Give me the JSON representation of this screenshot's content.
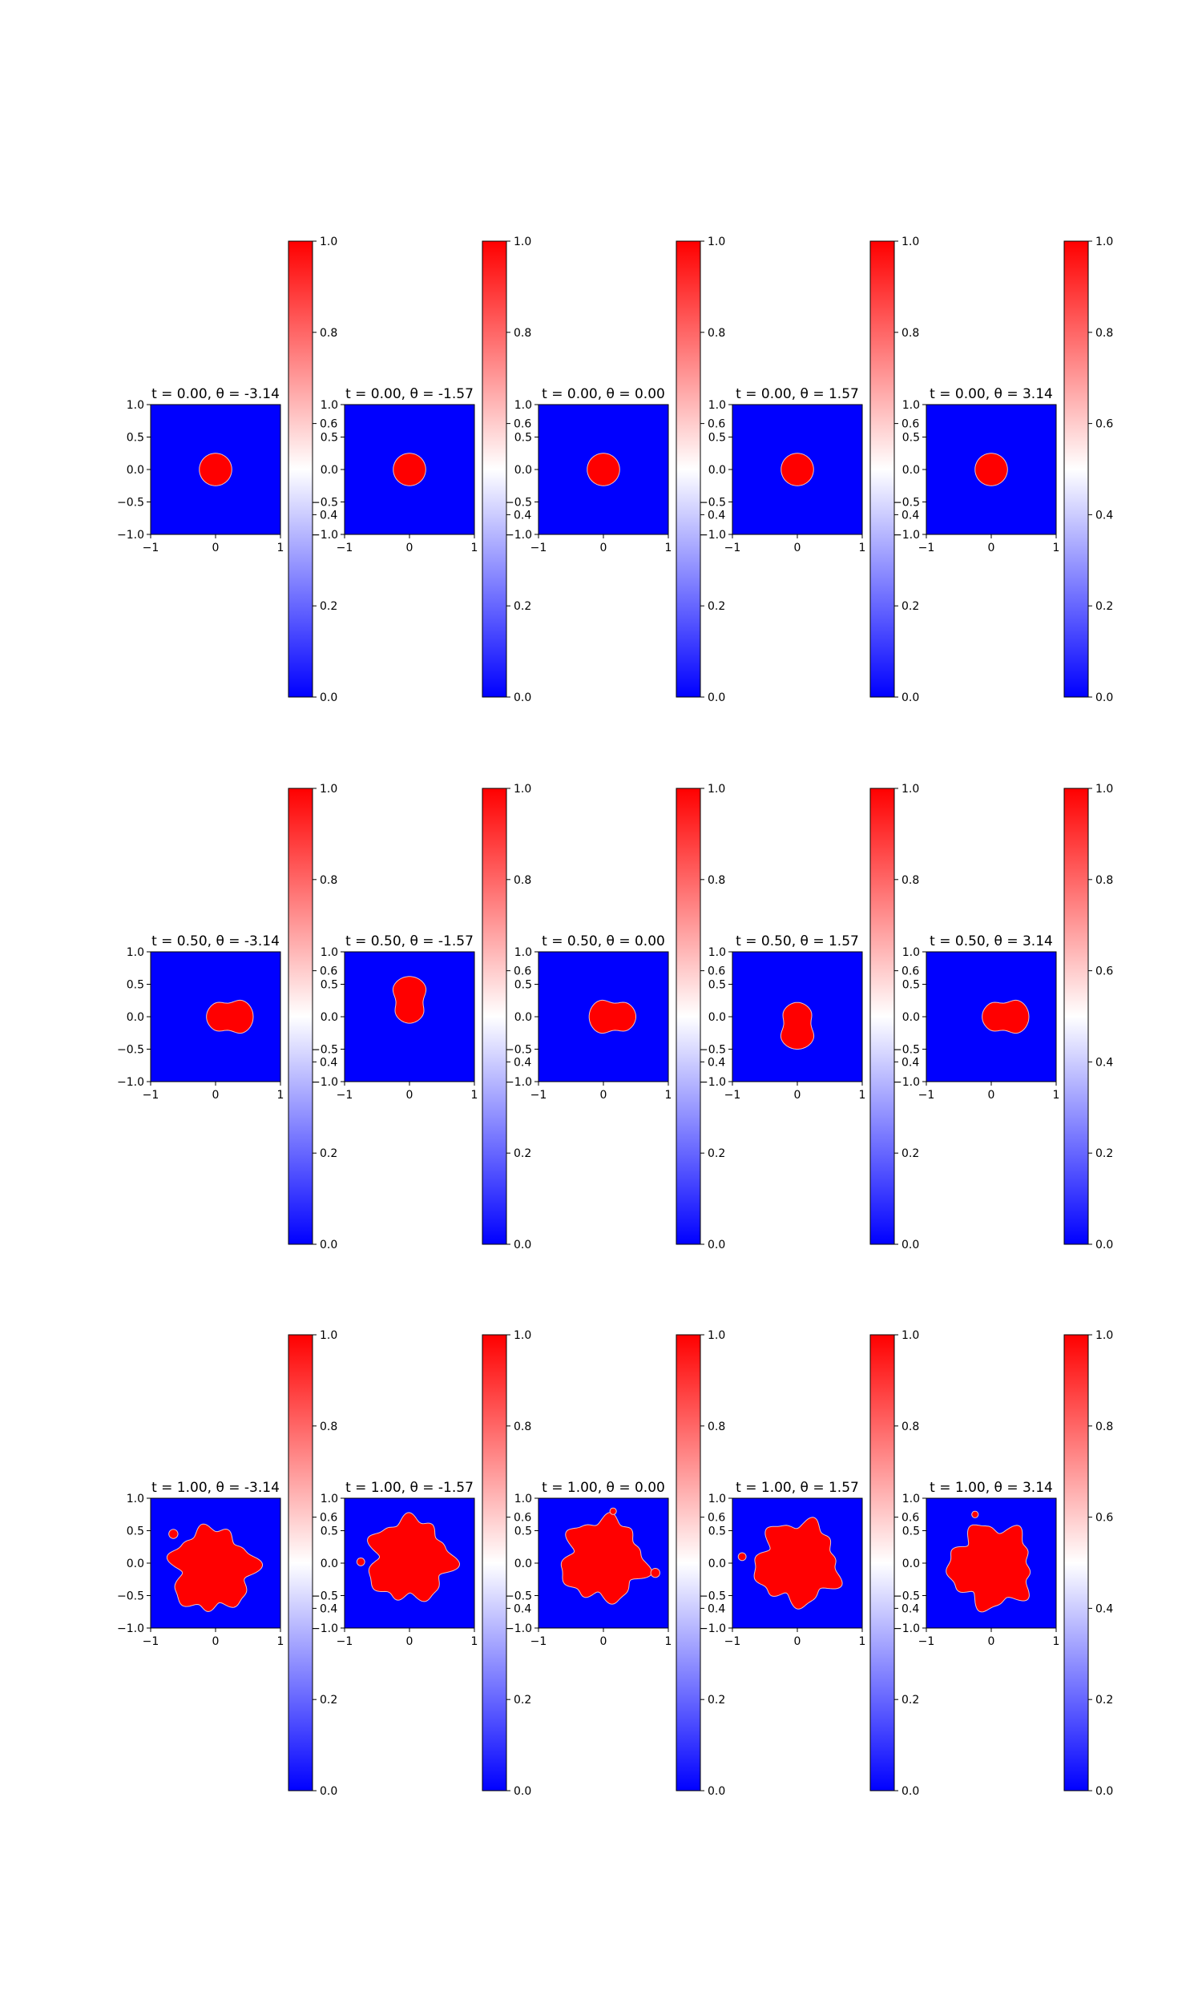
{
  "chart_data": {
    "type": "heatmap",
    "colormap": "bwr",
    "colors": {
      "low": "#0000ff",
      "mid": "#ffffff",
      "high": "#ff0000"
    },
    "xlim": [
      -1,
      1
    ],
    "ylim": [
      -1,
      1
    ],
    "x_ticks": [
      "−1",
      "0",
      "1"
    ],
    "y_ticks": [
      "−1.0",
      "−0.5",
      "0.0",
      "0.5",
      "1.0"
    ],
    "colorbar": {
      "range": [
        0.0,
        1.0
      ],
      "tick_values": [
        0.0,
        0.2,
        0.4,
        0.6,
        0.8,
        1.0
      ],
      "tick_labels": [
        "0.0",
        "0.2",
        "0.4",
        "0.6",
        "0.8",
        "1.0"
      ]
    },
    "rows": [
      {
        "t": 0.0,
        "panels": [
          {
            "theta": -3.14,
            "title": "t = 0.00, θ = -3.14",
            "shape": "disk"
          },
          {
            "theta": -1.57,
            "title": "t = 0.00, θ = -1.57",
            "shape": "disk"
          },
          {
            "theta": 0.0,
            "title": "t = 0.00, θ = 0.00",
            "shape": "disk"
          },
          {
            "theta": 1.57,
            "title": "t = 0.00, θ = 1.57",
            "shape": "disk"
          },
          {
            "theta": 3.14,
            "title": "t = 0.00, θ = 3.14",
            "shape": "disk"
          }
        ]
      },
      {
        "t": 0.5,
        "panels": [
          {
            "theta": -3.14,
            "title": "t = 0.50, θ = -3.14",
            "shape": "peanut-right"
          },
          {
            "theta": -1.57,
            "title": "t = 0.50, θ = -1.57",
            "shape": "peanut-up"
          },
          {
            "theta": 0.0,
            "title": "t = 0.50, θ = 0.00",
            "shape": "peanut-left"
          },
          {
            "theta": 1.57,
            "title": "t = 0.50, θ = 1.57",
            "shape": "peanut-down"
          },
          {
            "theta": 3.14,
            "title": "t = 0.50, θ = 3.14",
            "shape": "peanut-right"
          }
        ]
      },
      {
        "t": 1.0,
        "panels": [
          {
            "theta": -3.14,
            "title": "t = 1.00, θ = -3.14",
            "shape": "blob-1"
          },
          {
            "theta": -1.57,
            "title": "t = 1.00, θ = -1.57",
            "shape": "blob-2"
          },
          {
            "theta": 0.0,
            "title": "t = 1.00, θ = 0.00",
            "shape": "blob-3"
          },
          {
            "theta": 1.57,
            "title": "t = 1.00, θ = 1.57",
            "shape": "blob-4"
          },
          {
            "theta": 3.14,
            "title": "t = 1.00, θ = 3.14",
            "shape": "blob-5"
          }
        ]
      }
    ]
  }
}
